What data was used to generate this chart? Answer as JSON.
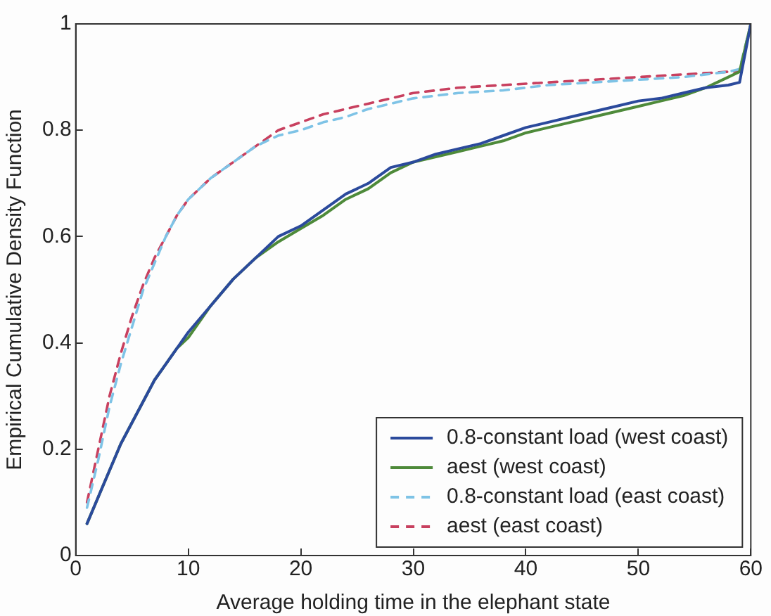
{
  "chart_data": {
    "type": "line",
    "xlabel": "Average holding time in the elephant state",
    "ylabel": "Empirical Cumulative Density Function",
    "xlim": [
      0,
      60
    ],
    "xticks": [
      0,
      10,
      20,
      30,
      40,
      50,
      60
    ],
    "ylim": [
      0,
      1
    ],
    "yticks": [
      0,
      0.2,
      0.4,
      0.6,
      0.8,
      1
    ],
    "grid": false,
    "legend": "bottom right",
    "marker": "none",
    "series": [
      {
        "name": "0.8-constant load (west coast)",
        "color": "#2b4a9c",
        "line_style": "solid",
        "x": [
          1,
          2,
          3,
          4,
          5,
          6,
          7,
          8,
          9,
          10,
          12,
          14,
          16,
          18,
          20,
          22,
          24,
          26,
          28,
          30,
          32,
          34,
          36,
          38,
          40,
          42,
          44,
          46,
          48,
          50,
          52,
          54,
          56,
          58,
          59,
          60
        ],
        "values": [
          0.06,
          0.11,
          0.16,
          0.21,
          0.25,
          0.29,
          0.33,
          0.36,
          0.39,
          0.42,
          0.47,
          0.52,
          0.56,
          0.6,
          0.62,
          0.65,
          0.68,
          0.7,
          0.73,
          0.74,
          0.755,
          0.765,
          0.775,
          0.79,
          0.805,
          0.815,
          0.825,
          0.835,
          0.845,
          0.855,
          0.86,
          0.87,
          0.88,
          0.885,
          0.89,
          1
        ]
      },
      {
        "name": "aest (west coast)",
        "color": "#4e8a3a",
        "line_style": "solid",
        "x": [
          1,
          2,
          3,
          4,
          5,
          6,
          7,
          8,
          9,
          10,
          12,
          14,
          16,
          18,
          20,
          22,
          24,
          26,
          28,
          30,
          32,
          34,
          36,
          38,
          40,
          42,
          44,
          46,
          48,
          50,
          52,
          54,
          56,
          58,
          59,
          60
        ],
        "values": [
          0.06,
          0.11,
          0.16,
          0.21,
          0.25,
          0.29,
          0.33,
          0.36,
          0.39,
          0.41,
          0.47,
          0.52,
          0.56,
          0.59,
          0.615,
          0.64,
          0.67,
          0.69,
          0.72,
          0.74,
          0.75,
          0.76,
          0.77,
          0.78,
          0.795,
          0.805,
          0.815,
          0.825,
          0.835,
          0.845,
          0.855,
          0.865,
          0.88,
          0.9,
          0.91,
          1
        ]
      },
      {
        "name": "0.8-constant load (east coast)",
        "color": "#7ec3e6",
        "line_style": "dashed",
        "x": [
          1,
          2,
          3,
          4,
          5,
          6,
          7,
          8,
          9,
          10,
          12,
          14,
          16,
          18,
          20,
          22,
          24,
          26,
          28,
          30,
          34,
          38,
          42,
          46,
          50,
          54,
          58,
          59,
          60
        ],
        "values": [
          0.09,
          0.18,
          0.28,
          0.36,
          0.43,
          0.5,
          0.55,
          0.6,
          0.64,
          0.67,
          0.71,
          0.74,
          0.77,
          0.79,
          0.8,
          0.815,
          0.825,
          0.84,
          0.85,
          0.86,
          0.87,
          0.875,
          0.885,
          0.89,
          0.895,
          0.9,
          0.91,
          0.915,
          1
        ]
      },
      {
        "name": "aest (east coast)",
        "color": "#c8405f",
        "line_style": "dashed",
        "x": [
          1,
          2,
          3,
          4,
          5,
          6,
          7,
          8,
          9,
          10,
          12,
          14,
          16,
          18,
          20,
          22,
          24,
          26,
          28,
          30,
          34,
          38,
          42,
          46,
          50,
          54,
          58,
          59,
          60
        ],
        "values": [
          0.1,
          0.2,
          0.3,
          0.38,
          0.45,
          0.51,
          0.56,
          0.6,
          0.64,
          0.67,
          0.71,
          0.74,
          0.77,
          0.8,
          0.815,
          0.83,
          0.84,
          0.85,
          0.86,
          0.87,
          0.88,
          0.885,
          0.89,
          0.895,
          0.9,
          0.905,
          0.91,
          0.91,
          1
        ]
      }
    ]
  }
}
